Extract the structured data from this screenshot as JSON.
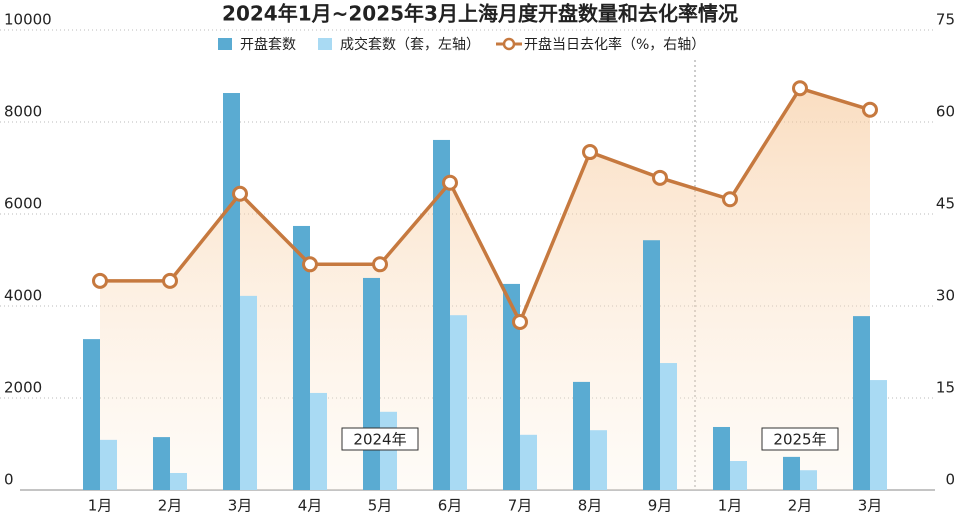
{
  "chart_data": {
    "type": "bar-line",
    "title": "2024年1月~2025年3月上海月度开盘数量和去化率情况",
    "categories": [
      "1月",
      "2月",
      "3月",
      "4月",
      "5月",
      "6月",
      "7月",
      "8月",
      "9月",
      "1月",
      "2月",
      "3月"
    ],
    "series": [
      {
        "name": "开盘套数",
        "color": "#5aabd2",
        "type": "bar",
        "values": [
          3280,
          1150,
          8630,
          5740,
          4610,
          7610,
          4480,
          2350,
          5430,
          1370,
          720,
          3780
        ]
      },
      {
        "name": "成交套数（套，左轴）",
        "color": "#a9daf3",
        "type": "bar",
        "values": [
          1090,
          370,
          4220,
          2110,
          1700,
          3800,
          1200,
          1300,
          2760,
          630,
          430,
          2390
        ]
      },
      {
        "name": "开盘当日去化率（%，右轴）",
        "color": "#c6793f",
        "type": "line",
        "axis": "y2",
        "values": [
          34.1,
          34.1,
          48.3,
          36.8,
          36.8,
          50.1,
          27.4,
          55.1,
          50.9,
          47.4,
          65.5,
          62.0
        ]
      }
    ],
    "annotations": [
      "2024年",
      "2025年"
    ],
    "ylim": [
      0,
      10000
    ],
    "yticks": [
      0,
      2000,
      4000,
      6000,
      8000,
      10000
    ],
    "y2lim": [
      0,
      75
    ],
    "y2ticks": [
      0,
      15,
      30,
      45,
      60,
      75
    ],
    "grid": true
  }
}
